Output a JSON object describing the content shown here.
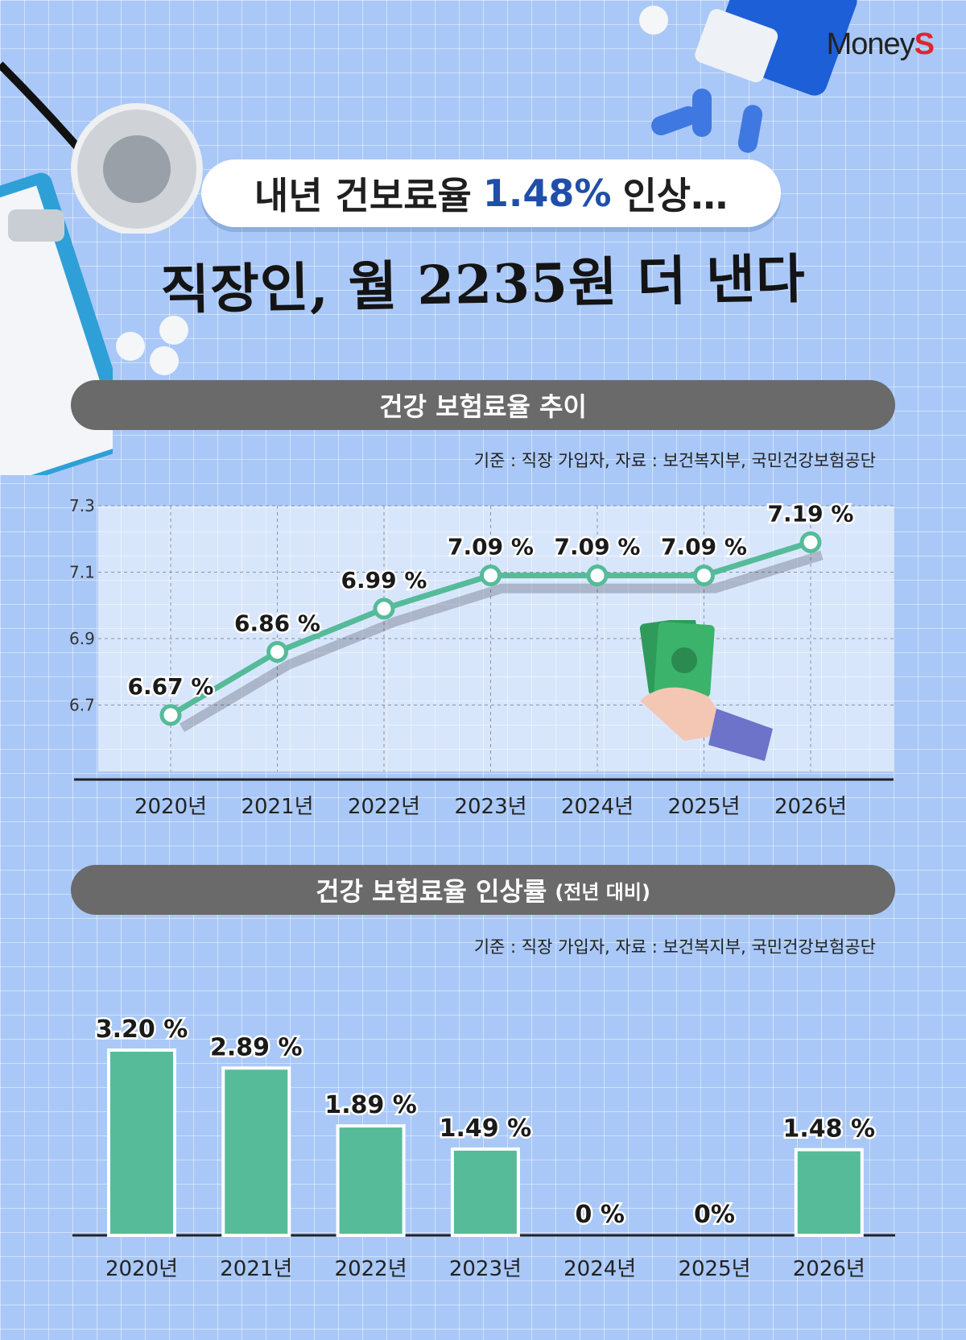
{
  "brand": {
    "prefix": "Money",
    "suffix": "S"
  },
  "headline": {
    "part1": "내년 건보료율",
    "highlight": "1.48%",
    "part2": "인상…"
  },
  "subheadline": "직장인, 월 2235원 더 낸다",
  "colors": {
    "bar": "#55bb99",
    "line": "#55bb99",
    "pill": "#6a6a6a",
    "headline_highlight": "#1f4fa8",
    "background": "#a9c8f7"
  },
  "section1": {
    "title": "건강 보험료율 추이",
    "source": "기준 : 직장 가입자, 자료 : 보건복지부, 국민건강보험공단"
  },
  "section2": {
    "title": "건강 보험료율 인상률",
    "title_suffix": "(전년 대비)",
    "source": "기준 : 직장 가입자, 자료 : 보건복지부, 국민건강보험공단"
  },
  "chart_data": [
    {
      "type": "line",
      "title": "건강 보험료율 추이",
      "categories": [
        "2020년",
        "2021년",
        "2022년",
        "2023년",
        "2024년",
        "2025년",
        "2026년"
      ],
      "values": [
        6.67,
        6.86,
        6.99,
        7.09,
        7.09,
        7.09,
        7.19
      ],
      "labels": [
        "6.67 %",
        "6.86 %",
        "6.99 %",
        "7.09 %",
        "7.09 %",
        "7.09 %",
        "7.19 %"
      ],
      "yticks": [
        "6.7",
        "6.9",
        "7.1",
        "7.3"
      ],
      "ylim": [
        6.5,
        7.3
      ],
      "grid": true
    },
    {
      "type": "bar",
      "title": "건강 보험료율 인상률 (전년 대비)",
      "categories": [
        "2020년",
        "2021년",
        "2022년",
        "2023년",
        "2024년",
        "2025년",
        "2026년"
      ],
      "values": [
        3.2,
        2.89,
        1.89,
        1.49,
        0,
        0,
        1.48
      ],
      "labels": [
        "3.20 %",
        "2.89 %",
        "1.89 %",
        "1.49 %",
        "0 %",
        "0%",
        "1.48 %"
      ],
      "ylim": [
        0,
        3.4
      ]
    }
  ]
}
